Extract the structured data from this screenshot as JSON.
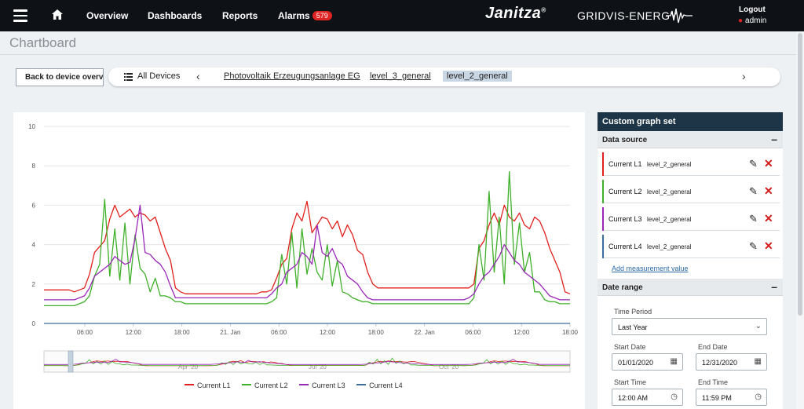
{
  "topbar": {
    "nav": [
      "Overview",
      "Dashboards",
      "Reports",
      "Alarms"
    ],
    "alarm_count": "579",
    "brand": "Janitza",
    "brand_reg": "®",
    "product": "GRIDVIS-ENERGY",
    "logout": "Logout",
    "user": "admin"
  },
  "page": {
    "title": "Chartboard"
  },
  "toolbar": {
    "back_label": "Back to device overview",
    "all_devices": "All Devices",
    "crumbs": [
      "Photovoltaik Erzeugungsanlage EG",
      "level_3_general",
      "level_2_general"
    ]
  },
  "side": {
    "title": "Custom graph set",
    "data_source": "Data source",
    "items": [
      {
        "name": "Current L1",
        "device": "level_2_general",
        "color": "#e0211d"
      },
      {
        "name": "Current L2",
        "device": "level_2_general",
        "color": "#3fb02a"
      },
      {
        "name": "Current L3",
        "device": "level_2_general",
        "color": "#9a27b8"
      },
      {
        "name": "Current L4",
        "device": "level_2_general",
        "color": "#3c6f9e"
      }
    ],
    "add_measurement": "Add measurement value",
    "date_range": "Date range",
    "time_period_label": "Time Period",
    "time_period": "Last Year",
    "start_date_label": "Start Date",
    "start_date": "01/01/2020",
    "end_date_label": "End Date",
    "end_date": "12/31/2020",
    "start_time_label": "Start Time",
    "start_time": "12:00 AM",
    "end_time_label": "End Time",
    "end_time": "11:59 PM"
  },
  "chart_data": {
    "type": "line",
    "ylim": [
      0,
      10
    ],
    "y_ticks": [
      "0",
      "2",
      "4",
      "6",
      "8",
      "10"
    ],
    "x_ticks": [
      "06:00",
      "12:00",
      "18:00",
      "21. Jan",
      "06:00",
      "12:00",
      "18:00",
      "22. Jan",
      "06:00",
      "12:00",
      "18:00"
    ],
    "navigator_labels": [
      "Apr '20",
      "Jul '20",
      "Oct '20"
    ],
    "series": [
      {
        "name": "Current L1",
        "color": "#e0211d",
        "values": [
          1.7,
          1.7,
          1.7,
          1.7,
          1.7,
          1.7,
          1.6,
          1.7,
          1.8,
          2.5,
          3.6,
          3.9,
          4.2,
          5.3,
          6.0,
          5.4,
          5.6,
          5.8,
          5.4,
          5.6,
          5.5,
          5.2,
          5.4,
          4.6,
          3.8,
          3.2,
          1.8,
          1.6,
          1.5,
          1.5,
          1.5,
          1.5,
          1.5,
          1.5,
          1.5,
          1.5,
          1.5,
          1.5,
          1.5,
          1.5,
          1.5,
          1.5,
          1.5,
          1.6,
          1.6,
          1.7,
          2.3,
          3.0,
          3.3,
          4.8,
          5.6,
          5.2,
          6.2,
          4.6,
          5.0,
          5.4,
          5.3,
          4.8,
          5.2,
          4.4,
          5.0,
          4.5,
          3.7,
          3.5,
          2.6,
          2.0,
          1.8,
          1.8,
          1.8,
          1.8,
          1.8,
          1.8,
          1.8,
          1.8,
          1.8,
          1.8,
          1.8,
          1.8,
          1.8,
          1.8,
          1.8,
          1.8,
          1.8,
          1.8,
          1.8,
          2.0,
          3.8,
          4.2,
          5.0,
          5.6,
          5.0,
          6.0,
          5.4,
          5.2,
          5.6,
          5.0,
          4.8,
          5.4,
          5.2,
          4.6,
          3.8,
          3.2,
          2.6,
          1.6,
          1.5
        ]
      },
      {
        "name": "Current L2",
        "color": "#3fb02a",
        "values": [
          0.9,
          0.9,
          0.9,
          0.9,
          0.9,
          0.9,
          0.9,
          1.0,
          1.1,
          1.4,
          2.4,
          3.0,
          6.3,
          2.4,
          4.8,
          2.2,
          5.1,
          2.0,
          4.5,
          2.8,
          2.5,
          1.6,
          2.3,
          1.4,
          1.4,
          1.3,
          1.1,
          1.1,
          1.0,
          1.0,
          1.0,
          1.0,
          1.0,
          1.0,
          1.0,
          1.0,
          1.0,
          1.0,
          1.0,
          1.0,
          1.0,
          1.0,
          1.0,
          1.0,
          1.0,
          1.1,
          1.3,
          3.5,
          2.0,
          4.6,
          1.8,
          4.8,
          2.5,
          3.8,
          2.6,
          2.2,
          4.0,
          1.9,
          3.2,
          1.6,
          1.5,
          1.3,
          1.2,
          1.1,
          1.1,
          1.0,
          1.0,
          1.0,
          1.0,
          1.0,
          1.0,
          1.0,
          1.0,
          1.0,
          1.0,
          1.0,
          1.0,
          1.0,
          1.0,
          1.0,
          1.0,
          1.0,
          1.0,
          1.0,
          1.0,
          1.3,
          4.0,
          2.2,
          6.7,
          2.6,
          5.4,
          2.0,
          7.7,
          3.0,
          5.1,
          2.6,
          3.6,
          1.6,
          1.6,
          1.2,
          1.1,
          1.1,
          1.0,
          1.0,
          1.0
        ]
      },
      {
        "name": "Current L3",
        "color": "#9a27b8",
        "values": [
          1.2,
          1.2,
          1.2,
          1.2,
          1.2,
          1.2,
          1.2,
          1.3,
          1.4,
          1.8,
          2.4,
          2.6,
          2.8,
          3.0,
          3.4,
          3.2,
          3.0,
          3.1,
          4.3,
          6.0,
          3.6,
          3.5,
          3.2,
          3.0,
          2.6,
          1.9,
          1.3,
          1.3,
          1.3,
          1.3,
          1.3,
          1.3,
          1.3,
          1.3,
          1.3,
          1.3,
          1.3,
          1.3,
          1.3,
          1.3,
          1.3,
          1.3,
          1.3,
          1.3,
          1.3,
          1.5,
          1.8,
          2.0,
          2.6,
          2.8,
          3.0,
          3.6,
          3.4,
          3.0,
          5.0,
          3.6,
          3.4,
          3.8,
          3.2,
          3.0,
          2.4,
          2.2,
          2.0,
          1.6,
          1.3,
          1.2,
          1.2,
          1.2,
          1.2,
          1.2,
          1.2,
          1.2,
          1.2,
          1.2,
          1.2,
          1.2,
          1.2,
          1.2,
          1.2,
          1.2,
          1.2,
          1.2,
          1.2,
          1.2,
          1.3,
          1.5,
          2.0,
          2.4,
          2.6,
          3.0,
          3.4,
          4.0,
          3.6,
          3.2,
          3.0,
          2.6,
          2.4,
          2.2,
          2.0,
          1.7,
          1.4,
          1.3,
          1.2,
          1.2,
          1.2
        ]
      },
      {
        "name": "Current L4",
        "color": "#3c6f9e",
        "values": [
          0.0,
          0.0
        ]
      }
    ]
  }
}
